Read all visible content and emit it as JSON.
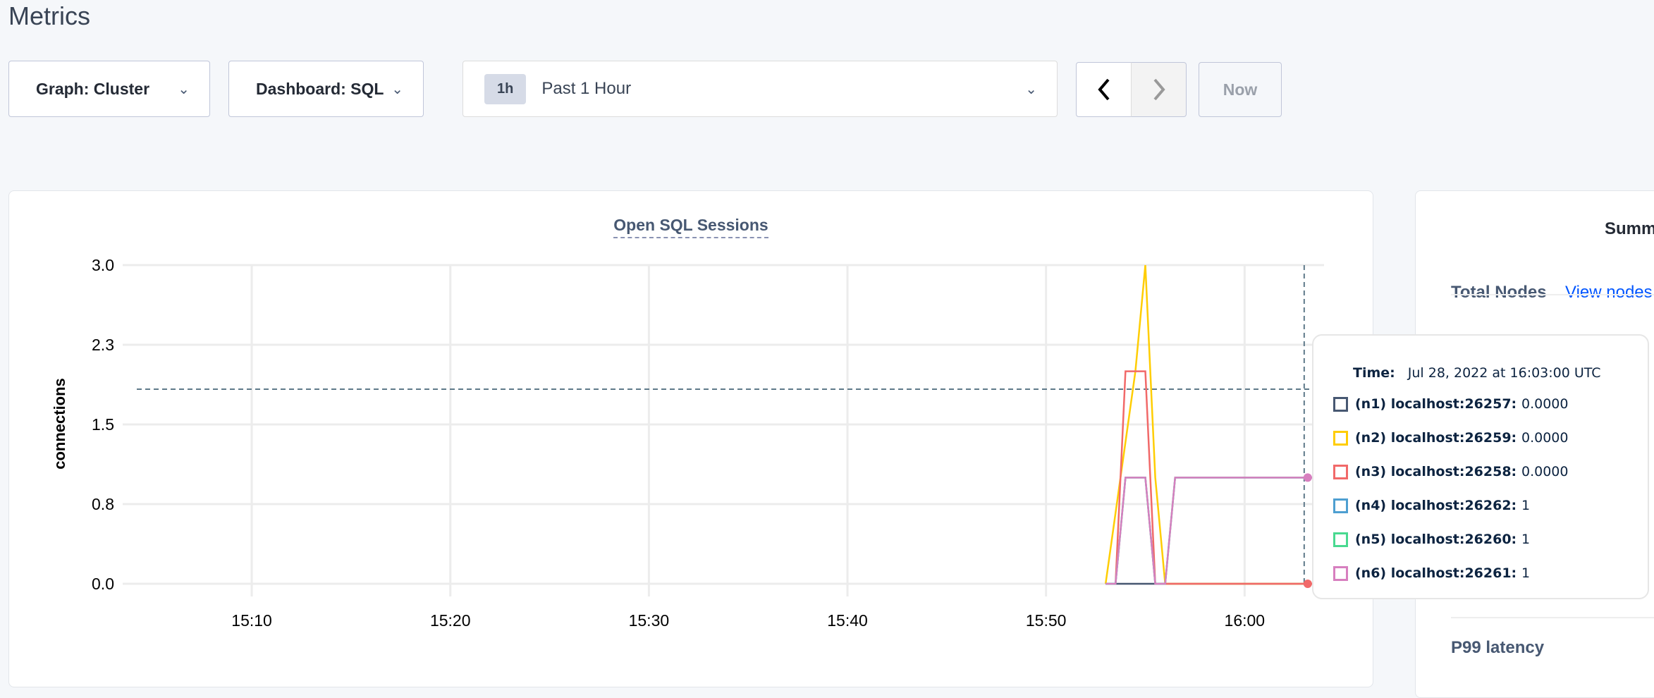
{
  "page_title": "Metrics",
  "toolbar": {
    "graph_label": "Graph: Cluster",
    "dashboard_label": "Dashboard: SQL",
    "time_badge": "1h",
    "time_label": "Past 1 Hour",
    "prev_icon": "chevron-left-icon",
    "next_icon": "chevron-right-icon",
    "now_label": "Now"
  },
  "chart_data": {
    "type": "line",
    "title": "Open SQL Sessions",
    "ylabel": "connections",
    "yticks": [
      "0.0",
      "0.8",
      "1.5",
      "2.3",
      "3.0"
    ],
    "ylim": [
      0,
      3
    ],
    "xticks": [
      "15:10",
      "15:20",
      "15:30",
      "15:40",
      "15:50",
      "16:00"
    ],
    "xlim": [
      "15:03:30",
      "16:04:00"
    ],
    "grid": true,
    "hover_time": "16:03:00",
    "series": [
      {
        "name": "(n1) localhost:26257",
        "color": "#475872",
        "points": [
          [
            "15:53:00",
            0
          ],
          [
            "16:04:00",
            0
          ]
        ]
      },
      {
        "name": "(n2) localhost:26259",
        "color": "#ffcd02",
        "points": [
          [
            "15:53:00",
            0
          ],
          [
            "15:54:30",
            2
          ],
          [
            "15:55:00",
            3
          ],
          [
            "15:55:30",
            1
          ],
          [
            "15:56:00",
            0
          ],
          [
            "16:04:00",
            0
          ]
        ]
      },
      {
        "name": "(n3) localhost:26258",
        "color": "#f16969",
        "points": [
          [
            "15:53:30",
            0
          ],
          [
            "15:54:00",
            2
          ],
          [
            "15:55:00",
            2
          ],
          [
            "15:55:30",
            0
          ],
          [
            "16:04:00",
            0
          ]
        ]
      },
      {
        "name": "(n4) localhost:26262",
        "color": "#4e9fd1",
        "points": [
          [
            "15:53:00",
            0
          ],
          [
            "15:53:30",
            0
          ],
          [
            "15:54:00",
            1
          ],
          [
            "15:55:00",
            1
          ],
          [
            "15:55:30",
            0
          ],
          [
            "15:56:00",
            0
          ],
          [
            "15:56:30",
            1
          ],
          [
            "16:04:00",
            1
          ]
        ]
      },
      {
        "name": "(n5) localhost:26260",
        "color": "#49d990",
        "points": [
          [
            "15:53:00",
            0
          ],
          [
            "15:53:30",
            0
          ],
          [
            "15:54:00",
            1
          ],
          [
            "15:55:00",
            1
          ],
          [
            "15:55:30",
            0
          ],
          [
            "15:56:00",
            0
          ],
          [
            "15:56:30",
            1
          ],
          [
            "16:04:00",
            1
          ]
        ]
      },
      {
        "name": "(n6) localhost:26261",
        "color": "#d77fbf",
        "points": [
          [
            "15:53:00",
            0
          ],
          [
            "15:53:30",
            0
          ],
          [
            "15:54:00",
            1
          ],
          [
            "15:55:00",
            1
          ],
          [
            "15:55:30",
            0
          ],
          [
            "15:56:00",
            0
          ],
          [
            "15:56:30",
            1
          ],
          [
            "16:04:00",
            1
          ]
        ]
      }
    ]
  },
  "tooltip": {
    "time_label": "Time:",
    "time_value": "Jul 28, 2022 at 16:03:00 UTC",
    "rows": [
      {
        "name": "(n1) localhost:26257:",
        "value": "0.0000",
        "color": "#475872"
      },
      {
        "name": "(n2) localhost:26259:",
        "value": "0.0000",
        "color": "#ffcd02"
      },
      {
        "name": "(n3) localhost:26258:",
        "value": "0.0000",
        "color": "#f16969"
      },
      {
        "name": "(n4) localhost:26262:",
        "value": "1",
        "color": "#4e9fd1"
      },
      {
        "name": "(n5) localhost:26260:",
        "value": "1",
        "color": "#49d990"
      },
      {
        "name": "(n6) localhost:26261:",
        "value": "1",
        "color": "#d77fbf"
      }
    ]
  },
  "summary": {
    "title": "Summ",
    "total_nodes_label": "Total Nodes",
    "view_nodes_link": "View nodes",
    "p99_label": "P99 latency"
  }
}
